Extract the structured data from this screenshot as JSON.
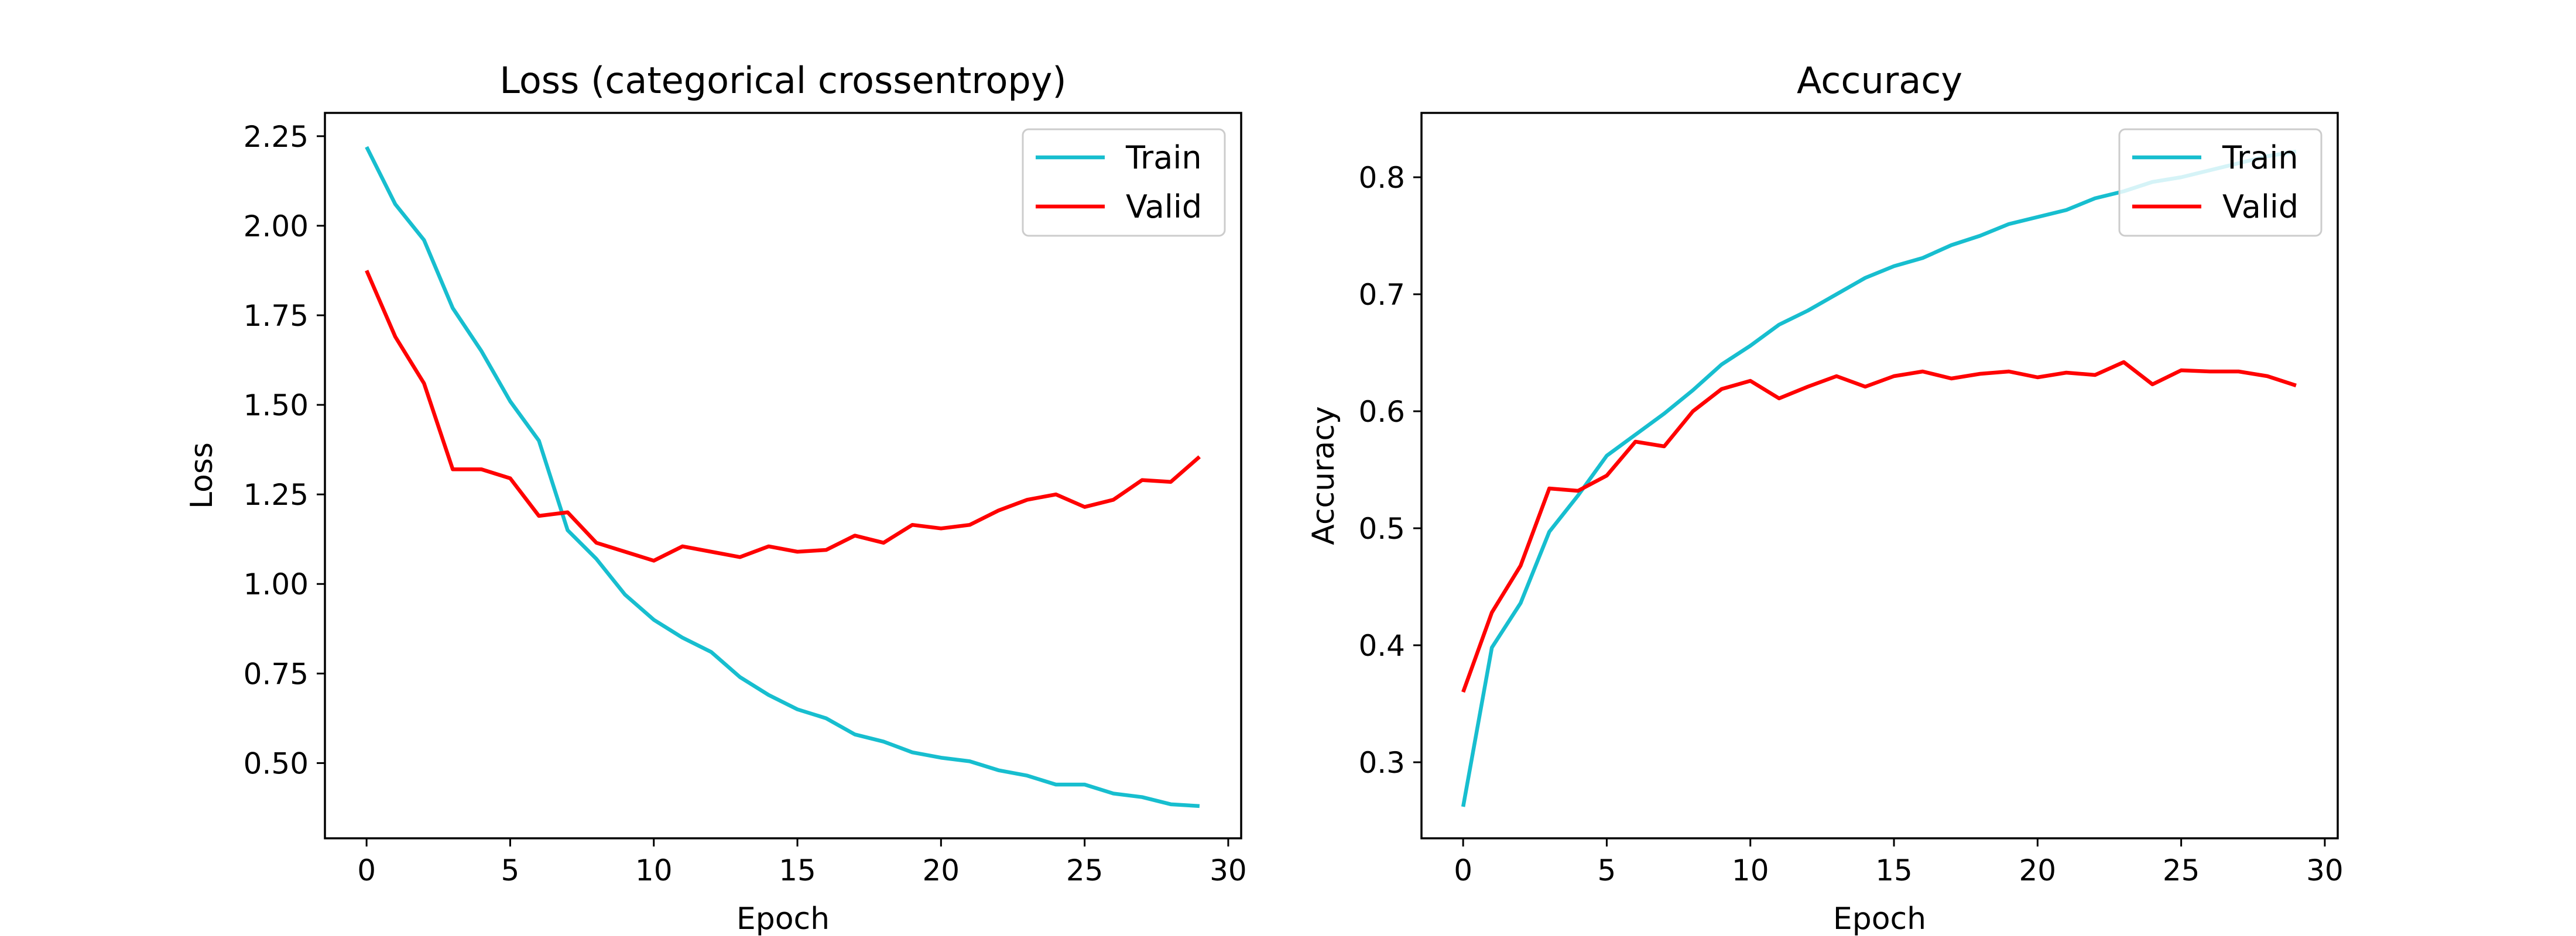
{
  "chart_data": [
    {
      "type": "line",
      "title": "Loss (categorical crossentropy)",
      "xlabel": "Epoch",
      "ylabel": "Loss",
      "xlim": [
        -1.45,
        30.45
      ],
      "ylim": [
        0.29,
        2.315
      ],
      "xticks": [
        0,
        5,
        10,
        15,
        20,
        25,
        30
      ],
      "yticks": [
        0.5,
        0.75,
        1.0,
        1.25,
        1.5,
        1.75,
        2.0,
        2.25
      ],
      "ytick_labels": [
        "0.50",
        "0.75",
        "1.00",
        "1.25",
        "1.50",
        "1.75",
        "2.00",
        "2.25"
      ],
      "legend_position": "top-right",
      "grid": false,
      "x": [
        0,
        1,
        2,
        3,
        4,
        5,
        6,
        7,
        8,
        9,
        10,
        11,
        12,
        13,
        14,
        15,
        16,
        17,
        18,
        19,
        20,
        21,
        22,
        23,
        24,
        25,
        26,
        27,
        28,
        29
      ],
      "series": [
        {
          "name": "Train",
          "color": "#17becf",
          "values": [
            2.22,
            2.06,
            1.96,
            1.77,
            1.65,
            1.51,
            1.4,
            1.15,
            1.07,
            0.97,
            0.9,
            0.85,
            0.81,
            0.74,
            0.69,
            0.65,
            0.625,
            0.58,
            0.56,
            0.53,
            0.515,
            0.505,
            0.48,
            0.465,
            0.44,
            0.44,
            0.415,
            0.405,
            0.385,
            0.38
          ]
        },
        {
          "name": "Valid",
          "color": "#ff0000",
          "values": [
            1.875,
            1.69,
            1.56,
            1.32,
            1.32,
            1.295,
            1.19,
            1.2,
            1.115,
            1.09,
            1.065,
            1.105,
            1.09,
            1.075,
            1.105,
            1.09,
            1.095,
            1.135,
            1.115,
            1.165,
            1.155,
            1.165,
            1.205,
            1.235,
            1.25,
            1.215,
            1.235,
            1.29,
            1.285,
            1.355
          ]
        }
      ]
    },
    {
      "type": "line",
      "title": "Accuracy",
      "xlabel": "Epoch",
      "ylabel": "Accuracy",
      "xlim": [
        -1.45,
        30.45
      ],
      "ylim": [
        0.235,
        0.855
      ],
      "xticks": [
        0,
        5,
        10,
        15,
        20,
        25,
        30
      ],
      "yticks": [
        0.3,
        0.4,
        0.5,
        0.6,
        0.7,
        0.8
      ],
      "ytick_labels": [
        "0.3",
        "0.4",
        "0.5",
        "0.6",
        "0.7",
        "0.8"
      ],
      "legend_position": "top-right",
      "grid": false,
      "x": [
        0,
        1,
        2,
        3,
        4,
        5,
        6,
        7,
        8,
        9,
        10,
        11,
        12,
        13,
        14,
        15,
        16,
        17,
        18,
        19,
        20,
        21,
        22,
        23,
        24,
        25,
        26,
        27,
        28,
        29
      ],
      "series": [
        {
          "name": "Train",
          "color": "#17becf",
          "values": [
            0.262,
            0.398,
            0.436,
            0.497,
            0.528,
            0.562,
            0.58,
            0.598,
            0.618,
            0.64,
            0.656,
            0.674,
            0.686,
            0.7,
            0.714,
            0.724,
            0.731,
            0.742,
            0.75,
            0.76,
            0.766,
            0.772,
            0.782,
            0.788,
            0.796,
            0.8,
            0.806,
            0.812,
            0.818,
            0.822
          ]
        },
        {
          "name": "Valid",
          "color": "#ff0000",
          "values": [
            0.36,
            0.428,
            0.468,
            0.534,
            0.532,
            0.545,
            0.574,
            0.57,
            0.6,
            0.619,
            0.626,
            0.611,
            0.621,
            0.63,
            0.621,
            0.63,
            0.634,
            0.628,
            0.632,
            0.634,
            0.629,
            0.633,
            0.631,
            0.642,
            0.623,
            0.635,
            0.634,
            0.634,
            0.63,
            0.622
          ]
        }
      ]
    }
  ]
}
